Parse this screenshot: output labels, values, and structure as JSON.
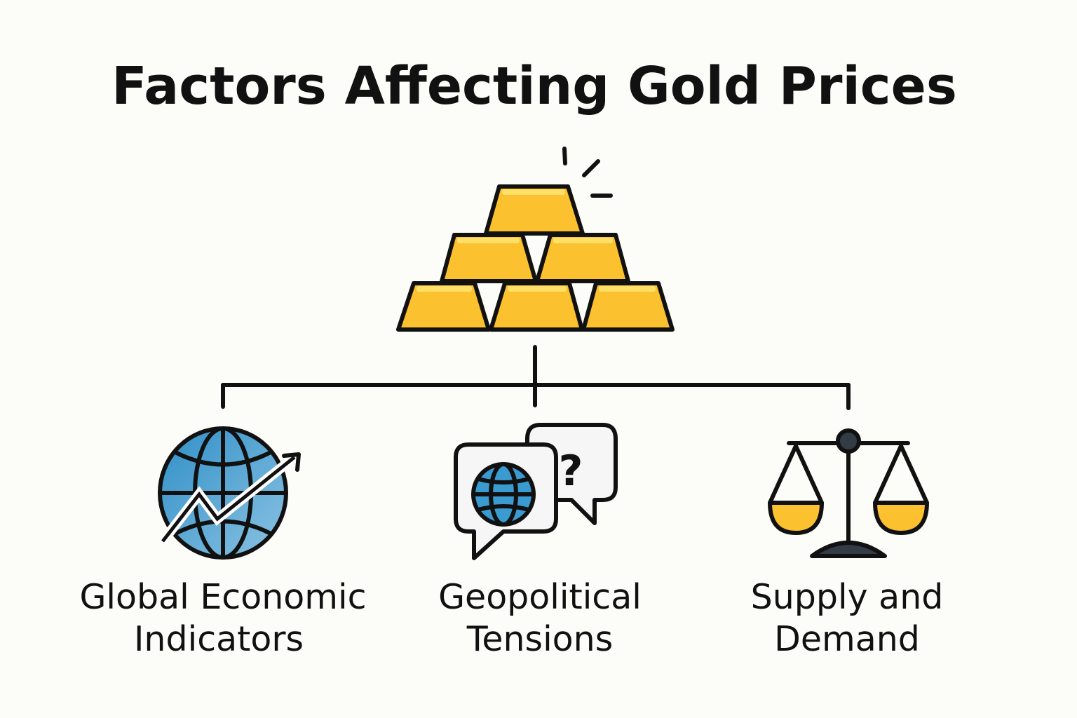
{
  "title": "Factors Affecting Gold Prices",
  "root": {
    "icon": "gold-bars-stack-icon"
  },
  "factors": [
    {
      "line1": "Global Economic",
      "line2": "Indicators",
      "icon": "globe-trend-arrow-icon"
    },
    {
      "line1": "Geopolitical",
      "line2": "Tensions",
      "icon": "speech-bubbles-globe-question-icon"
    },
    {
      "line1": "Supply and",
      "line2": "Demand",
      "icon": "balance-scale-icon"
    }
  ],
  "colors": {
    "gold": "#fbc12e",
    "gold_highlight": "#ffe066",
    "globe_blue": "#3a9bd0",
    "outline": "#111111",
    "background": "#fcfcf9"
  }
}
